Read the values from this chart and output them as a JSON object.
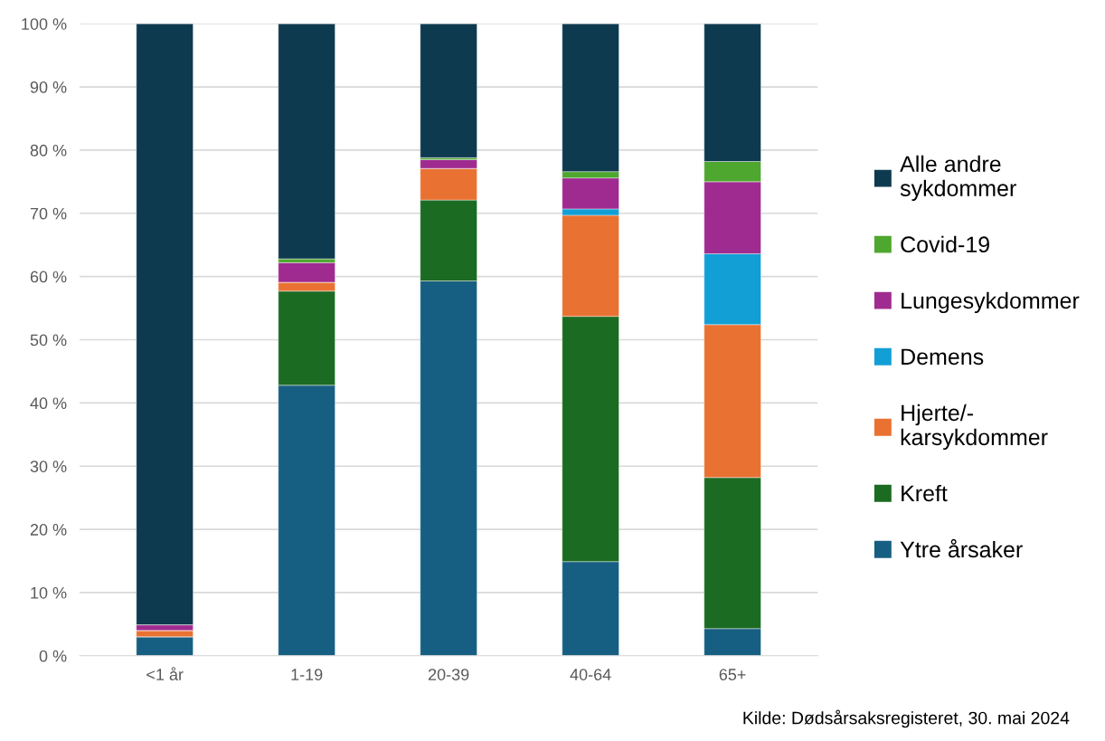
{
  "chart_data": {
    "type": "bar",
    "stacked": true,
    "categories": [
      "<1 år",
      "1-19",
      "20-39",
      "40-64",
      "65+"
    ],
    "series": [
      {
        "name": "Ytre årsaker",
        "color": "#175f82",
        "values": [
          3.0,
          42.8,
          59.3,
          14.9,
          4.3
        ]
      },
      {
        "name": "Kreft",
        "color": "#1c6b23",
        "values": [
          0,
          14.9,
          12.8,
          38.8,
          23.9
        ]
      },
      {
        "name": "Hjerte/-karsykdommer",
        "color": "#e97232",
        "values": [
          1.0,
          1.4,
          5.0,
          16.0,
          24.2
        ]
      },
      {
        "name": "Demens",
        "color": "#129fd6",
        "values": [
          0,
          0,
          0,
          1.0,
          11.2
        ]
      },
      {
        "name": "Lungesykdommer",
        "color": "#a02b90",
        "values": [
          0.9,
          3.1,
          1.4,
          4.9,
          11.4
        ]
      },
      {
        "name": "Covid-19",
        "color": "#4ea72e",
        "values": [
          0,
          0.6,
          0.3,
          1.0,
          3.2
        ]
      },
      {
        "name": "Alle andre sykdommer",
        "color": "#0e3a4f",
        "values": [
          95.1,
          37.2,
          21.2,
          23.4,
          21.8
        ]
      }
    ],
    "ylim": [
      0,
      100
    ],
    "yticks": [
      {
        "value": 0,
        "label": "0 %"
      },
      {
        "value": 10,
        "label": "10 %"
      },
      {
        "value": 20,
        "label": "20 %"
      },
      {
        "value": 30,
        "label": "30 %"
      },
      {
        "value": 40,
        "label": "40 %"
      },
      {
        "value": 50,
        "label": "50 %"
      },
      {
        "value": 60,
        "label": "60 %"
      },
      {
        "value": 70,
        "label": "70 %"
      },
      {
        "value": 80,
        "label": "80 %"
      },
      {
        "value": 90,
        "label": "90 %"
      },
      {
        "value": 100,
        "label": "100 %"
      }
    ],
    "grid": "y",
    "legend": "right",
    "annotations": [
      "Kilde: Dødsårsaksregisteret, 30. mai 2024"
    ]
  }
}
